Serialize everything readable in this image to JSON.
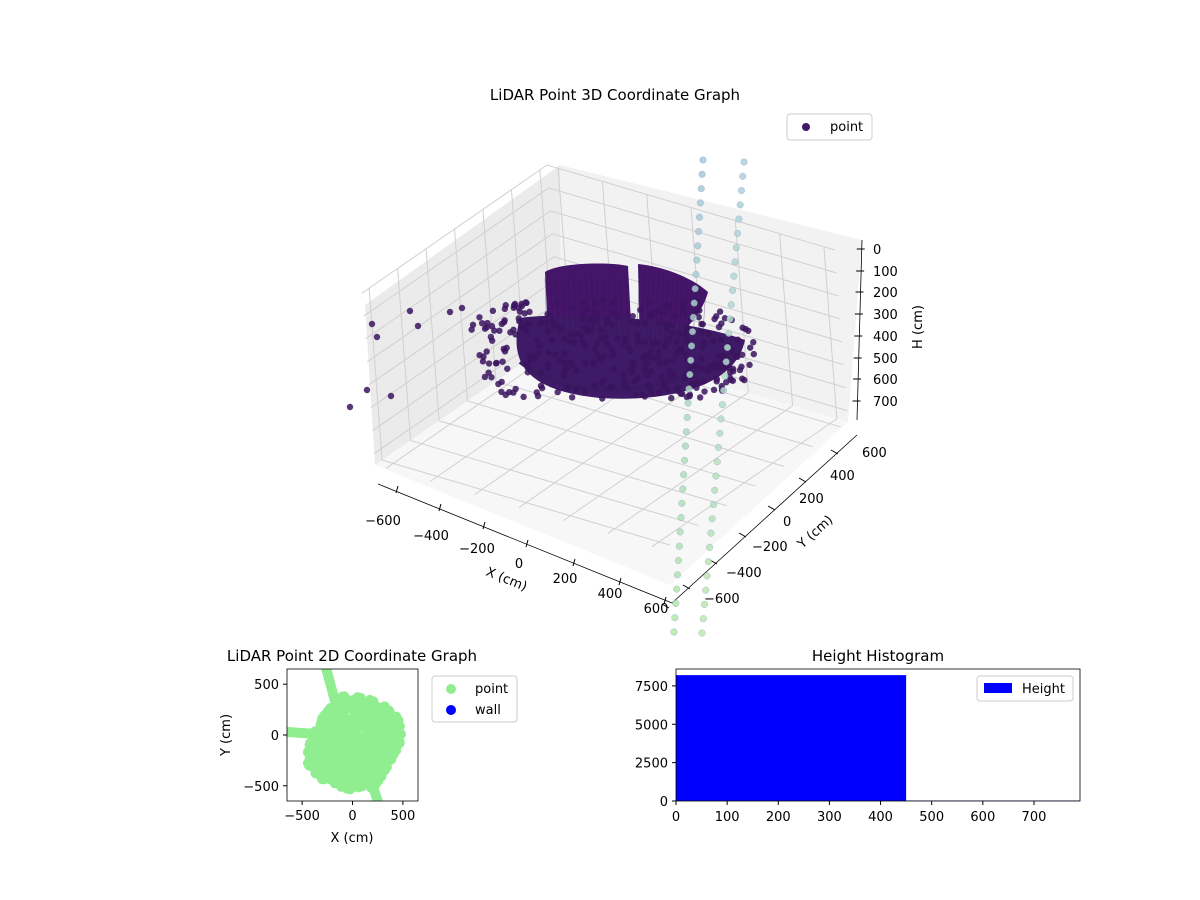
{
  "colors": {
    "point3d": "#3f1a66",
    "point2d": "#90ee90",
    "wall": "#0000ff",
    "hist": "#0000ff",
    "line_left_top": "#a9c6dc",
    "line_left_bottom": "#b6e8a8",
    "line_right_top": "#b0cfe0",
    "line_right_bottom": "#bfe9ad"
  },
  "chart_data": [
    {
      "type": "scatter",
      "projection": "3d",
      "title": "LiDAR Point 3D Coordinate Graph",
      "xlabel": "X (cm)",
      "ylabel": "Y (cm)",
      "zlabel": "H (cm)",
      "xticks": [
        "−600",
        "−400",
        "−200",
        "0",
        "200",
        "400",
        "600"
      ],
      "yticks": [
        "600",
        "400",
        "200",
        "0",
        "−200",
        "−400",
        "−600"
      ],
      "zticks": [
        "0",
        "100",
        "200",
        "300",
        "400",
        "500",
        "600",
        "700"
      ],
      "xlim": [
        -650,
        650
      ],
      "ylim": [
        -650,
        650
      ],
      "zlim": [
        0,
        750
      ],
      "z_inverted": true,
      "legend": [
        {
          "name": "point"
        }
      ],
      "legend_position": "top-right",
      "grid": true
    },
    {
      "type": "scatter",
      "title": "LiDAR Point 2D Coordinate Graph",
      "xlabel": "X (cm)",
      "ylabel": "Y (cm)",
      "xticks": [
        "−500",
        "0",
        "500"
      ],
      "yticks": [
        "500",
        "0",
        "−500"
      ],
      "xlim": [
        -650,
        650
      ],
      "ylim": [
        -650,
        650
      ],
      "legend": [
        {
          "name": "point"
        },
        {
          "name": "wall"
        }
      ],
      "legend_position": "outside-right",
      "grid": false
    },
    {
      "type": "bar",
      "title": "Height Histogram",
      "xticks": [
        "0",
        "100",
        "200",
        "300",
        "400",
        "500",
        "600",
        "700"
      ],
      "yticks": [
        "0",
        "2500",
        "5000",
        "7500"
      ],
      "xlim": [
        0,
        790
      ],
      "ylim": [
        0,
        8600
      ],
      "bins": [
        {
          "from": 0,
          "to": 450,
          "count": 8200
        },
        {
          "from": 450,
          "to": 790,
          "count": 30
        }
      ],
      "legend": [
        {
          "name": "Height"
        }
      ],
      "legend_position": "top-right",
      "grid": false
    }
  ]
}
